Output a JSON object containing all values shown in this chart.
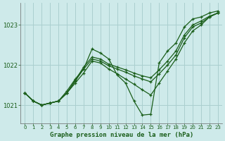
{
  "title": "Graphe pression niveau de la mer (hPa)",
  "background_color": "#ceeaea",
  "grid_color": "#aacfcf",
  "line_color": "#1a5e1a",
  "xlim": [
    -0.5,
    23.5
  ],
  "ylim": [
    1020.55,
    1023.55
  ],
  "yticks": [
    1021,
    1022,
    1023
  ],
  "xticks": [
    0,
    1,
    2,
    3,
    4,
    5,
    6,
    7,
    8,
    9,
    10,
    11,
    12,
    13,
    14,
    15,
    16,
    17,
    18,
    19,
    20,
    21,
    22,
    23
  ],
  "series": [
    [
      1021.3,
      1021.1,
      1021.0,
      1021.05,
      1021.1,
      1021.35,
      1021.65,
      1021.9,
      1022.4,
      1022.3,
      1022.15,
      1021.75,
      1021.55,
      1021.1,
      1020.75,
      1020.77,
      1022.05,
      1022.35,
      1022.55,
      1022.95,
      1023.15,
      1023.2,
      1023.3,
      1023.35
    ],
    [
      1021.3,
      1021.1,
      1021.0,
      1021.05,
      1021.1,
      1021.3,
      1021.55,
      1021.8,
      1022.1,
      1022.05,
      1021.9,
      1021.78,
      1021.65,
      1021.52,
      1021.38,
      1021.25,
      1021.55,
      1021.85,
      1022.15,
      1022.55,
      1022.85,
      1023.0,
      1023.2,
      1023.3
    ],
    [
      1021.3,
      1021.1,
      1021.0,
      1021.05,
      1021.1,
      1021.3,
      1021.6,
      1021.9,
      1022.15,
      1022.1,
      1021.98,
      1021.9,
      1021.82,
      1021.73,
      1021.65,
      1021.58,
      1021.78,
      1022.0,
      1022.25,
      1022.68,
      1022.95,
      1023.05,
      1023.2,
      1023.3
    ],
    [
      1021.3,
      1021.1,
      1021.0,
      1021.05,
      1021.1,
      1021.3,
      1021.62,
      1021.95,
      1022.2,
      1022.15,
      1022.02,
      1021.95,
      1021.88,
      1021.8,
      1021.73,
      1021.68,
      1021.88,
      1022.1,
      1022.35,
      1022.75,
      1023.0,
      1023.1,
      1023.22,
      1023.3
    ]
  ]
}
